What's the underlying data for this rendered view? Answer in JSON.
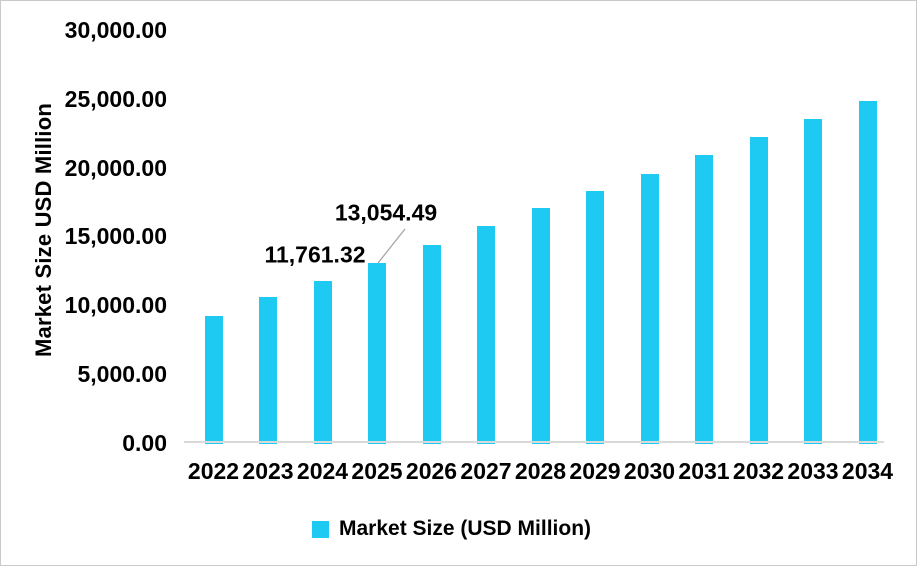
{
  "chart_data": {
    "type": "bar",
    "title": "",
    "ylabel": "Market Size USD Million",
    "xlabel": "",
    "categories": [
      "2022",
      "2023",
      "2024",
      "2025",
      "2026",
      "2027",
      "2028",
      "2029",
      "2030",
      "2031",
      "2032",
      "2033",
      "2034"
    ],
    "values": [
      9220,
      10550,
      11761.32,
      13054.49,
      14390,
      15720,
      17050,
      18270,
      19560,
      20890,
      22200,
      23530,
      24870
    ],
    "ylim": [
      0,
      30000
    ],
    "grid": false,
    "y_ticks": [
      {
        "value": 0,
        "label": "0.00"
      },
      {
        "value": 5000,
        "label": "5,000.00"
      },
      {
        "value": 10000,
        "label": "10,000.00"
      },
      {
        "value": 15000,
        "label": "15,000.00"
      },
      {
        "value": 20000,
        "label": "20,000.00"
      },
      {
        "value": 25000,
        "label": "25,000.00"
      },
      {
        "value": 30000,
        "label": "30,000.00"
      }
    ],
    "data_labels": [
      {
        "year": "2024",
        "text": "11,761.32",
        "leader_line": false
      },
      {
        "year": "2025",
        "text": "13,054.49",
        "leader_line": true
      }
    ],
    "legend": {
      "label": "Market Size (USD Million)",
      "position": "bottom"
    },
    "colors": {
      "bar": "#1EC9F2",
      "axis_line": "#D9D9D9",
      "leader_line": "#A6A6A6",
      "text": "#000000",
      "background": "#FFFFFF"
    }
  }
}
